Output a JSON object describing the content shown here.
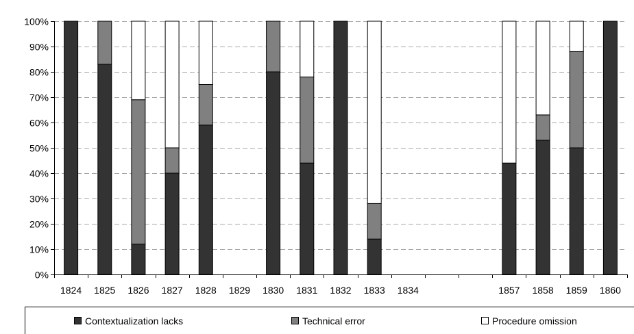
{
  "chart_data": {
    "type": "bar",
    "stacked": true,
    "categories": [
      "1824",
      "1825",
      "1826",
      "1827",
      "1828",
      "1829",
      "1830",
      "1831",
      "1832",
      "1833",
      "1834",
      "",
      "",
      "1857",
      "1858",
      "1859",
      "1860"
    ],
    "series": [
      {
        "name": "Contextualization lacks",
        "color": "#333333",
        "values": [
          100,
          83,
          12,
          40,
          59,
          null,
          80,
          44,
          100,
          14,
          null,
          null,
          null,
          44,
          53,
          50,
          100
        ]
      },
      {
        "name": "Technical error",
        "color": "#808080",
        "values": [
          0,
          17,
          57,
          10,
          16,
          null,
          20,
          34,
          0,
          14,
          null,
          null,
          null,
          0,
          10,
          38,
          0
        ]
      },
      {
        "name": "Procedure omission",
        "color": "#ffffff",
        "values": [
          0,
          0,
          31,
          50,
          25,
          null,
          0,
          22,
          0,
          72,
          null,
          null,
          null,
          56,
          37,
          12,
          0
        ]
      }
    ],
    "y_ticks": [
      "0%",
      "10%",
      "20%",
      "30%",
      "40%",
      "50%",
      "60%",
      "70%",
      "80%",
      "90%",
      "100%"
    ],
    "ylim": [
      0,
      100
    ],
    "grid": true,
    "legend_position": "bottom"
  }
}
